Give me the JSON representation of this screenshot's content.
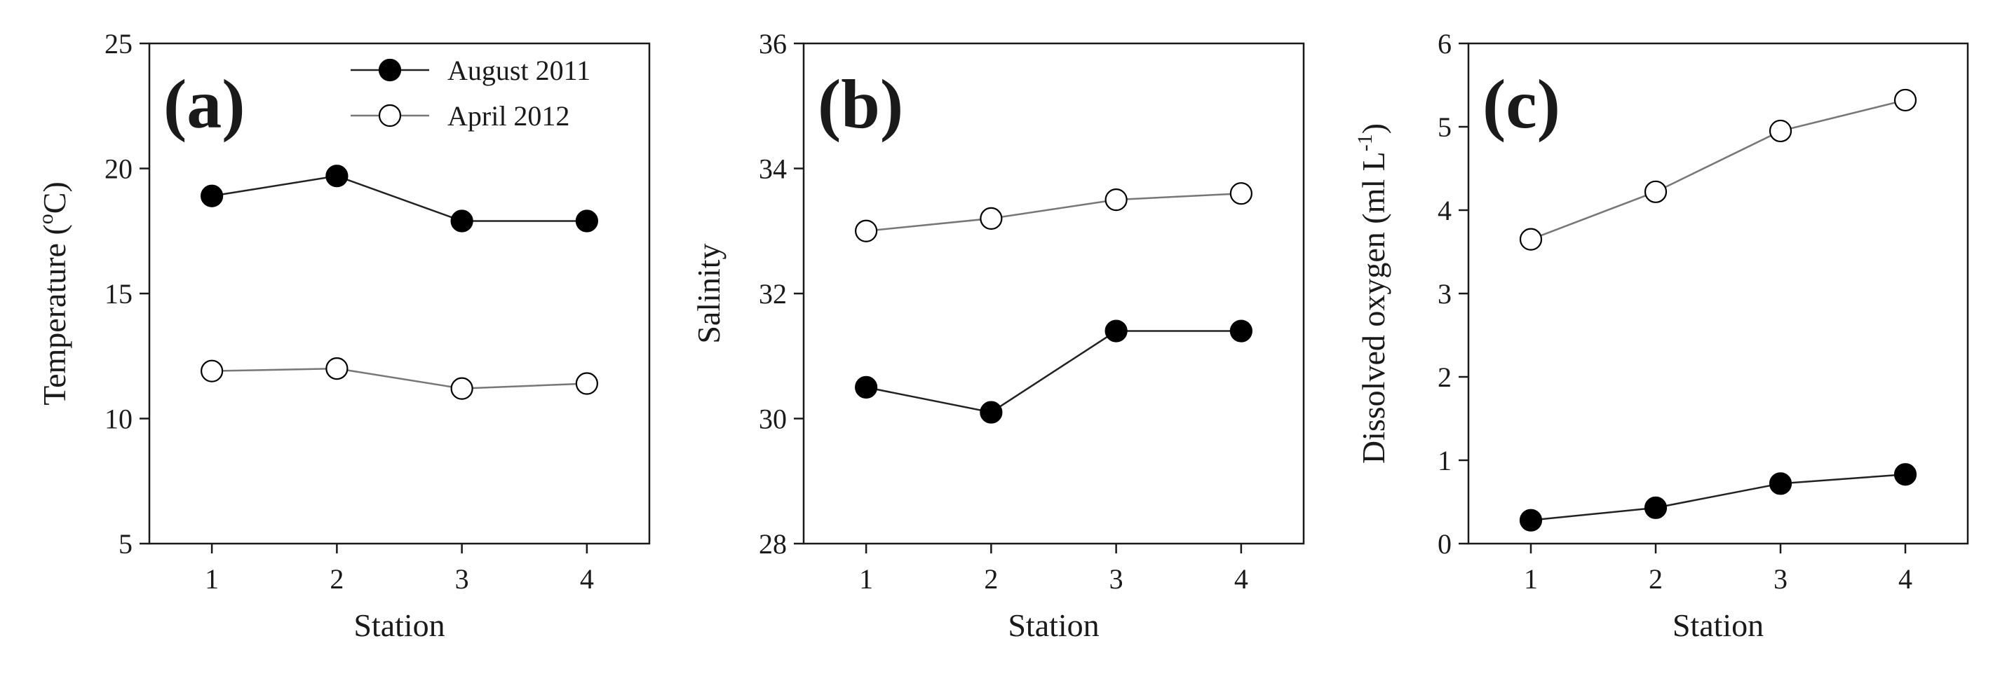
{
  "chart_data": [
    {
      "type": "line",
      "panel_label": "(a)",
      "xlabel": "Station",
      "ylabel": "Temperature (",
      "ylabel_sup": "o",
      "ylabel_end": "C)",
      "x": [
        1,
        2,
        3,
        4
      ],
      "xticks": [
        "1",
        "2",
        "3",
        "4"
      ],
      "xlim": [
        0.5,
        4.5
      ],
      "ylim": [
        5,
        25
      ],
      "yticks": [
        "5",
        "10",
        "15",
        "20",
        "25"
      ],
      "grid": false,
      "legend_position": "top-right",
      "series": [
        {
          "name": "August 2011",
          "marker": "filled-circle",
          "color": "#000000",
          "line_color": "#222222",
          "values": [
            18.9,
            19.7,
            17.9,
            17.9
          ]
        },
        {
          "name": "April 2012",
          "marker": "open-circle",
          "color": "#ffffff",
          "line_color": "#777777",
          "values": [
            11.9,
            12.0,
            11.2,
            11.4
          ]
        }
      ]
    },
    {
      "type": "line",
      "panel_label": "(b)",
      "xlabel": "Station",
      "ylabel": "Salinity",
      "x": [
        1,
        2,
        3,
        4
      ],
      "xticks": [
        "1",
        "2",
        "3",
        "4"
      ],
      "xlim": [
        0.5,
        4.5
      ],
      "ylim": [
        28,
        36
      ],
      "yticks": [
        "28",
        "30",
        "32",
        "34",
        "36"
      ],
      "grid": false,
      "series": [
        {
          "name": "August 2011",
          "marker": "filled-circle",
          "color": "#000000",
          "line_color": "#222222",
          "values": [
            30.5,
            30.1,
            31.4,
            31.4
          ]
        },
        {
          "name": "April 2012",
          "marker": "open-circle",
          "color": "#ffffff",
          "line_color": "#777777",
          "values": [
            33.0,
            33.2,
            33.5,
            33.6
          ]
        }
      ]
    },
    {
      "type": "line",
      "panel_label": "(c)",
      "xlabel": "Station",
      "ylabel": "Dissolved oxygen (ml L",
      "ylabel_sup": "-1",
      "ylabel_end": ")",
      "x": [
        1,
        2,
        3,
        4
      ],
      "xticks": [
        "1",
        "2",
        "3",
        "4"
      ],
      "xlim": [
        0.5,
        4.5
      ],
      "ylim": [
        0,
        6
      ],
      "yticks": [
        "0",
        "1",
        "2",
        "3",
        "4",
        "5",
        "6"
      ],
      "grid": false,
      "series": [
        {
          "name": "August 2011",
          "marker": "filled-circle",
          "color": "#000000",
          "line_color": "#222222",
          "values": [
            0.28,
            0.43,
            0.72,
            0.83
          ]
        },
        {
          "name": "April 2012",
          "marker": "open-circle",
          "color": "#ffffff",
          "line_color": "#777777",
          "values": [
            3.65,
            4.22,
            4.95,
            5.32
          ]
        }
      ]
    }
  ]
}
